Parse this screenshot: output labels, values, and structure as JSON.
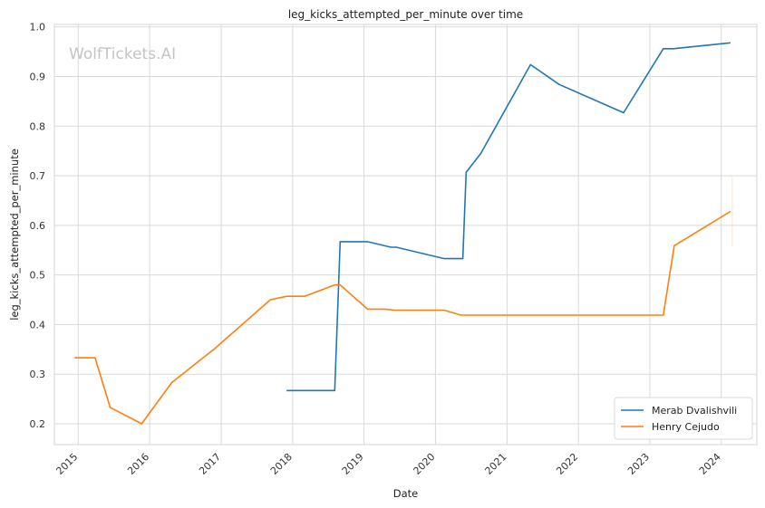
{
  "chart_data": {
    "type": "line",
    "title": "leg_kicks_attempted_per_minute over time",
    "xlabel": "Date",
    "ylabel": "leg_kicks_attempted_per_minute",
    "watermark": "WolfTickets.AI",
    "xlim": [
      "2014-09-01",
      "2024-07-01"
    ],
    "ylim": [
      0.158,
      1.005
    ],
    "y_ticks": [
      0.2,
      0.3,
      0.4,
      0.5,
      0.6,
      0.7,
      0.8,
      0.9,
      1.0
    ],
    "y_tick_labels": [
      "0.2",
      "0.3",
      "0.4",
      "0.5",
      "0.6",
      "0.7",
      "0.8",
      "0.9",
      "1.0"
    ],
    "x_ticks": [
      "2015-01-01",
      "2016-01-01",
      "2017-01-01",
      "2018-01-01",
      "2019-01-01",
      "2020-01-01",
      "2021-01-01",
      "2022-01-01",
      "2023-01-01",
      "2024-01-01"
    ],
    "x_tick_labels": [
      "2015",
      "2016",
      "2017",
      "2018",
      "2019",
      "2020",
      "2021",
      "2022",
      "2023",
      "2024"
    ],
    "grid": true,
    "legend_position": "bottom-right",
    "series": [
      {
        "name": "Merab Dvalishvili",
        "color": "#1f77b4",
        "points": [
          [
            "2017-12-01",
            0.267
          ],
          [
            "2018-08-04",
            0.267
          ],
          [
            "2018-09-01",
            0.567
          ],
          [
            "2019-01-19",
            0.567
          ],
          [
            "2019-05-18",
            0.556
          ],
          [
            "2019-06-15",
            0.556
          ],
          [
            "2020-02-15",
            0.533
          ],
          [
            "2020-05-20",
            0.533
          ],
          [
            "2020-06-06",
            0.707
          ],
          [
            "2020-08-20",
            0.745
          ],
          [
            "2021-05-01",
            0.924
          ],
          [
            "2021-09-25",
            0.884
          ],
          [
            "2022-08-20",
            0.827
          ],
          [
            "2023-03-11",
            0.956
          ],
          [
            "2023-05-01",
            0.956
          ],
          [
            "2024-02-17",
            0.968
          ]
        ]
      },
      {
        "name": "Henry Cejudo",
        "color": "#ff7f0e",
        "points": [
          [
            "2014-12-13",
            0.333
          ],
          [
            "2015-03-28",
            0.333
          ],
          [
            "2015-06-13",
            0.233
          ],
          [
            "2015-11-21",
            0.2
          ],
          [
            "2016-04-23",
            0.283
          ],
          [
            "2016-12-03",
            0.353
          ],
          [
            "2017-09-09",
            0.45
          ],
          [
            "2017-12-02",
            0.457
          ],
          [
            "2018-03-03",
            0.457
          ],
          [
            "2018-08-04",
            0.48
          ],
          [
            "2018-09-01",
            0.48
          ],
          [
            "2019-01-19",
            0.431
          ],
          [
            "2019-04-15",
            0.431
          ],
          [
            "2019-06-08",
            0.429
          ],
          [
            "2020-02-15",
            0.429
          ],
          [
            "2020-05-09",
            0.419
          ],
          [
            "2023-03-11",
            0.419
          ],
          [
            "2023-05-06",
            0.559
          ],
          [
            "2024-02-17",
            0.628
          ]
        ]
      }
    ]
  }
}
